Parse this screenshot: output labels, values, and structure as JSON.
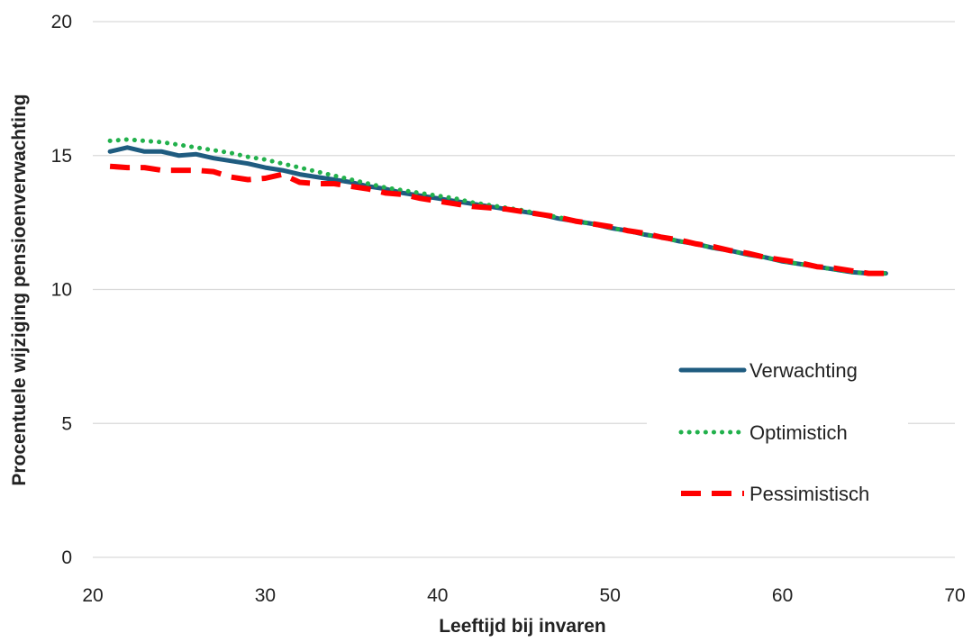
{
  "chart_data": {
    "type": "line",
    "xlabel": "Leeftijd bij invaren",
    "ylabel": "Procentuele wijziging pensioenverwachting",
    "xlim": [
      20,
      70
    ],
    "ylim": [
      0,
      20
    ],
    "xticks": [
      20,
      30,
      40,
      50,
      60,
      70
    ],
    "yticks": [
      0,
      5,
      10,
      15,
      20
    ],
    "grid": "horizontal",
    "legend_position": "bottom-right",
    "series": [
      {
        "name": "Verwachting",
        "color": "#1f5c80",
        "style": "solid",
        "x": [
          21,
          22,
          23,
          24,
          25,
          26,
          27,
          28,
          29,
          30,
          31,
          32,
          33,
          34,
          35,
          36,
          37,
          38,
          39,
          40,
          41,
          42,
          43,
          44,
          45,
          46,
          47,
          48,
          49,
          50,
          51,
          52,
          53,
          54,
          55,
          56,
          57,
          58,
          59,
          60,
          61,
          62,
          63,
          64,
          65,
          66
        ],
        "values": [
          15.15,
          15.3,
          15.15,
          15.15,
          15.0,
          15.05,
          14.9,
          14.8,
          14.7,
          14.55,
          14.45,
          14.3,
          14.2,
          14.1,
          14.0,
          13.85,
          13.75,
          13.6,
          13.5,
          13.4,
          13.3,
          13.2,
          13.1,
          13.0,
          12.9,
          12.8,
          12.65,
          12.55,
          12.45,
          12.3,
          12.2,
          12.05,
          11.95,
          11.8,
          11.7,
          11.55,
          11.45,
          11.3,
          11.2,
          11.05,
          10.95,
          10.85,
          10.75,
          10.65,
          10.6,
          10.6
        ]
      },
      {
        "name": "Optimistich",
        "color": "#22b14c",
        "style": "dotted",
        "x": [
          21,
          22,
          23,
          24,
          25,
          26,
          27,
          28,
          29,
          30,
          31,
          32,
          33,
          34,
          35,
          36,
          37,
          38,
          39,
          40,
          41,
          42,
          43,
          44,
          45,
          46,
          47,
          48,
          49,
          50,
          51,
          52,
          53,
          54,
          55,
          56,
          57,
          58,
          59,
          60,
          61,
          62,
          63,
          64,
          65,
          66
        ],
        "values": [
          15.55,
          15.6,
          15.55,
          15.5,
          15.4,
          15.3,
          15.2,
          15.1,
          14.95,
          14.85,
          14.7,
          14.55,
          14.4,
          14.25,
          14.1,
          13.95,
          13.8,
          13.7,
          13.6,
          13.5,
          13.4,
          13.25,
          13.15,
          13.05,
          12.95,
          12.8,
          12.7,
          12.55,
          12.45,
          12.3,
          12.2,
          12.05,
          11.95,
          11.8,
          11.7,
          11.55,
          11.45,
          11.3,
          11.2,
          11.05,
          10.95,
          10.85,
          10.75,
          10.65,
          10.6,
          10.6
        ]
      },
      {
        "name": "Pessimistisch",
        "color": "#ff0000",
        "style": "dashed",
        "x": [
          21,
          22,
          23,
          24,
          25,
          26,
          27,
          28,
          29,
          30,
          31,
          32,
          33,
          34,
          35,
          36,
          37,
          38,
          39,
          40,
          41,
          42,
          43,
          44,
          45,
          46,
          47,
          48,
          49,
          50,
          51,
          52,
          53,
          54,
          55,
          56,
          57,
          58,
          59,
          60,
          61,
          62,
          63,
          64,
          65,
          66
        ],
        "values": [
          14.6,
          14.55,
          14.55,
          14.45,
          14.45,
          14.45,
          14.4,
          14.2,
          14.1,
          14.15,
          14.3,
          14.0,
          13.95,
          13.95,
          13.85,
          13.75,
          13.6,
          13.55,
          13.4,
          13.3,
          13.2,
          13.1,
          13.05,
          13.0,
          12.9,
          12.8,
          12.7,
          12.55,
          12.45,
          12.35,
          12.2,
          12.1,
          11.95,
          11.85,
          11.7,
          11.6,
          11.45,
          11.35,
          11.2,
          11.1,
          11.0,
          10.85,
          10.8,
          10.7,
          10.6,
          10.6
        ]
      }
    ]
  }
}
